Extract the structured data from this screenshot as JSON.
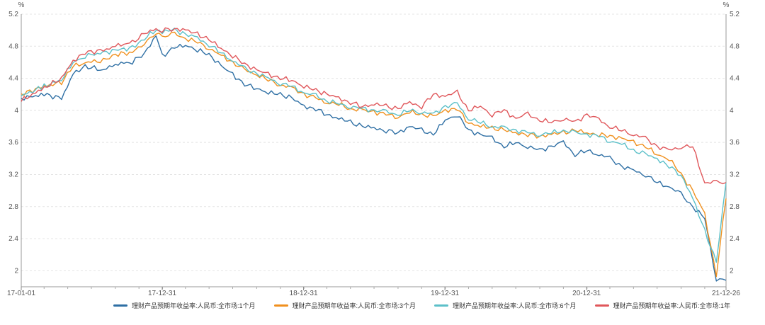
{
  "chart_data": {
    "type": "line",
    "y_unit_left": "%",
    "y_unit_right": "%",
    "ylim": [
      1.8,
      5.2
    ],
    "yticks": [
      2,
      2.4,
      2.8,
      3.2,
      3.6,
      4,
      4.4,
      4.8,
      5.2
    ],
    "xlim": [
      "2017-01-01",
      "2021-12-26"
    ],
    "xticks": [
      {
        "date": "2017-01-01",
        "label": "17-01-01"
      },
      {
        "date": "2017-12-31",
        "label": "17-12-31"
      },
      {
        "date": "2018-12-31",
        "label": "18-12-31"
      },
      {
        "date": "2019-12-31",
        "label": "19-12-31"
      },
      {
        "date": "2020-12-31",
        "label": "20-12-31"
      },
      {
        "date": "2021-12-26",
        "label": "21-12-26"
      }
    ],
    "grid": true,
    "legend_position": "bottom",
    "series": [
      {
        "name": "理财产品预期年收益率:人民币:全市场:1个月",
        "color": "#2e6fa4",
        "points": [
          [
            "2017-01-01",
            4.15
          ],
          [
            "2017-03-01",
            4.2
          ],
          [
            "2017-04-15",
            4.15
          ],
          [
            "2017-05-15",
            4.45
          ],
          [
            "2017-06-15",
            4.55
          ],
          [
            "2017-08-01",
            4.5
          ],
          [
            "2017-09-01",
            4.58
          ],
          [
            "2017-10-15",
            4.6
          ],
          [
            "2017-11-15",
            4.72
          ],
          [
            "2017-12-15",
            4.92
          ],
          [
            "2017-12-31",
            4.68
          ],
          [
            "2018-02-01",
            4.78
          ],
          [
            "2018-03-01",
            4.82
          ],
          [
            "2018-04-01",
            4.75
          ],
          [
            "2018-05-01",
            4.7
          ],
          [
            "2018-06-01",
            4.55
          ],
          [
            "2018-07-01",
            4.45
          ],
          [
            "2018-08-01",
            4.32
          ],
          [
            "2018-09-01",
            4.28
          ],
          [
            "2018-10-01",
            4.22
          ],
          [
            "2018-11-01",
            4.2
          ],
          [
            "2018-12-01",
            4.15
          ],
          [
            "2019-01-01",
            4.05
          ],
          [
            "2019-02-01",
            4.02
          ],
          [
            "2019-03-01",
            3.95
          ],
          [
            "2019-04-01",
            3.9
          ],
          [
            "2019-05-01",
            3.85
          ],
          [
            "2019-06-01",
            3.8
          ],
          [
            "2019-07-01",
            3.78
          ],
          [
            "2019-08-01",
            3.75
          ],
          [
            "2019-09-01",
            3.72
          ],
          [
            "2019-10-01",
            3.8
          ],
          [
            "2019-11-01",
            3.75
          ],
          [
            "2019-12-01",
            3.7
          ],
          [
            "2020-01-01",
            3.88
          ],
          [
            "2020-02-01",
            3.95
          ],
          [
            "2020-03-01",
            3.75
          ],
          [
            "2020-04-01",
            3.7
          ],
          [
            "2020-05-01",
            3.65
          ],
          [
            "2020-06-01",
            3.55
          ],
          [
            "2020-07-01",
            3.6
          ],
          [
            "2020-08-01",
            3.55
          ],
          [
            "2020-09-01",
            3.5
          ],
          [
            "2020-10-01",
            3.55
          ],
          [
            "2020-11-01",
            3.6
          ],
          [
            "2020-12-01",
            3.45
          ],
          [
            "2021-01-01",
            3.5
          ],
          [
            "2021-02-01",
            3.45
          ],
          [
            "2021-03-01",
            3.4
          ],
          [
            "2021-04-01",
            3.3
          ],
          [
            "2021-05-01",
            3.25
          ],
          [
            "2021-06-01",
            3.2
          ],
          [
            "2021-07-01",
            3.1
          ],
          [
            "2021-08-01",
            3.05
          ],
          [
            "2021-09-01",
            2.95
          ],
          [
            "2021-10-01",
            2.8
          ],
          [
            "2021-11-01",
            2.65
          ],
          [
            "2021-12-01",
            1.9
          ],
          [
            "2021-12-26",
            1.88
          ]
        ]
      },
      {
        "name": "理财产品预期年收益率:人民币:全市场:3个月",
        "color": "#f0901e",
        "points": [
          [
            "2017-01-01",
            4.2
          ],
          [
            "2017-03-01",
            4.3
          ],
          [
            "2017-04-15",
            4.35
          ],
          [
            "2017-05-15",
            4.55
          ],
          [
            "2017-06-15",
            4.6
          ],
          [
            "2017-08-01",
            4.62
          ],
          [
            "2017-09-01",
            4.7
          ],
          [
            "2017-10-15",
            4.72
          ],
          [
            "2017-11-15",
            4.85
          ],
          [
            "2017-12-15",
            4.95
          ],
          [
            "2017-12-31",
            4.92
          ],
          [
            "2018-02-01",
            4.95
          ],
          [
            "2018-03-01",
            4.9
          ],
          [
            "2018-04-01",
            4.85
          ],
          [
            "2018-05-01",
            4.78
          ],
          [
            "2018-06-01",
            4.68
          ],
          [
            "2018-07-01",
            4.6
          ],
          [
            "2018-08-01",
            4.5
          ],
          [
            "2018-09-01",
            4.45
          ],
          [
            "2018-10-01",
            4.38
          ],
          [
            "2018-11-01",
            4.32
          ],
          [
            "2018-12-01",
            4.28
          ],
          [
            "2019-01-01",
            4.2
          ],
          [
            "2019-02-01",
            4.15
          ],
          [
            "2019-03-01",
            4.1
          ],
          [
            "2019-04-01",
            4.08
          ],
          [
            "2019-05-01",
            4.02
          ],
          [
            "2019-06-01",
            4.0
          ],
          [
            "2019-07-01",
            3.98
          ],
          [
            "2019-08-01",
            3.95
          ],
          [
            "2019-09-01",
            3.92
          ],
          [
            "2019-10-01",
            3.98
          ],
          [
            "2019-11-01",
            3.95
          ],
          [
            "2019-12-01",
            3.92
          ],
          [
            "2020-01-01",
            4.0
          ],
          [
            "2020-02-01",
            4.02
          ],
          [
            "2020-03-01",
            3.85
          ],
          [
            "2020-04-01",
            3.8
          ],
          [
            "2020-05-01",
            3.78
          ],
          [
            "2020-06-01",
            3.75
          ],
          [
            "2020-07-01",
            3.72
          ],
          [
            "2020-08-01",
            3.7
          ],
          [
            "2020-09-01",
            3.68
          ],
          [
            "2020-10-01",
            3.7
          ],
          [
            "2020-11-01",
            3.72
          ],
          [
            "2020-12-01",
            3.75
          ],
          [
            "2021-01-01",
            3.72
          ],
          [
            "2021-02-01",
            3.7
          ],
          [
            "2021-03-01",
            3.68
          ],
          [
            "2021-04-01",
            3.65
          ],
          [
            "2021-05-01",
            3.6
          ],
          [
            "2021-06-01",
            3.55
          ],
          [
            "2021-07-01",
            3.45
          ],
          [
            "2021-08-01",
            3.4
          ],
          [
            "2021-09-01",
            3.2
          ],
          [
            "2021-10-01",
            3.0
          ],
          [
            "2021-11-01",
            2.7
          ],
          [
            "2021-12-01",
            1.95
          ],
          [
            "2021-12-26",
            2.9
          ]
        ]
      },
      {
        "name": "理财产品预期年收益率:人民币:全市场:6个月",
        "color": "#5cc0c9",
        "points": [
          [
            "2017-01-01",
            4.18
          ],
          [
            "2017-03-01",
            4.3
          ],
          [
            "2017-04-15",
            4.38
          ],
          [
            "2017-05-15",
            4.6
          ],
          [
            "2017-06-15",
            4.68
          ],
          [
            "2017-08-01",
            4.72
          ],
          [
            "2017-09-01",
            4.75
          ],
          [
            "2017-10-15",
            4.78
          ],
          [
            "2017-11-15",
            4.9
          ],
          [
            "2017-12-15",
            5.0
          ],
          [
            "2017-12-31",
            4.98
          ],
          [
            "2018-02-01",
            5.0
          ],
          [
            "2018-03-01",
            4.95
          ],
          [
            "2018-04-01",
            4.9
          ],
          [
            "2018-05-01",
            4.82
          ],
          [
            "2018-06-01",
            4.72
          ],
          [
            "2018-07-01",
            4.62
          ],
          [
            "2018-08-01",
            4.52
          ],
          [
            "2018-09-01",
            4.46
          ],
          [
            "2018-10-01",
            4.4
          ],
          [
            "2018-11-01",
            4.34
          ],
          [
            "2018-12-01",
            4.3
          ],
          [
            "2019-01-01",
            4.22
          ],
          [
            "2019-02-01",
            4.18
          ],
          [
            "2019-03-01",
            4.12
          ],
          [
            "2019-04-01",
            4.08
          ],
          [
            "2019-05-01",
            4.05
          ],
          [
            "2019-06-01",
            4.02
          ],
          [
            "2019-07-01",
            4.0
          ],
          [
            "2019-08-01",
            3.98
          ],
          [
            "2019-09-01",
            3.95
          ],
          [
            "2019-10-01",
            4.0
          ],
          [
            "2019-11-01",
            3.98
          ],
          [
            "2019-12-01",
            3.95
          ],
          [
            "2020-01-01",
            4.05
          ],
          [
            "2020-02-01",
            4.08
          ],
          [
            "2020-03-01",
            3.9
          ],
          [
            "2020-04-01",
            3.85
          ],
          [
            "2020-05-01",
            3.8
          ],
          [
            "2020-06-01",
            3.78
          ],
          [
            "2020-07-01",
            3.75
          ],
          [
            "2020-08-01",
            3.72
          ],
          [
            "2020-09-01",
            3.7
          ],
          [
            "2020-10-01",
            3.72
          ],
          [
            "2020-11-01",
            3.75
          ],
          [
            "2020-12-01",
            3.72
          ],
          [
            "2021-01-01",
            3.7
          ],
          [
            "2021-02-01",
            3.68
          ],
          [
            "2021-03-01",
            3.62
          ],
          [
            "2021-04-01",
            3.58
          ],
          [
            "2021-05-01",
            3.5
          ],
          [
            "2021-06-01",
            3.45
          ],
          [
            "2021-07-01",
            3.4
          ],
          [
            "2021-08-01",
            3.3
          ],
          [
            "2021-09-01",
            3.2
          ],
          [
            "2021-10-01",
            2.9
          ],
          [
            "2021-11-01",
            2.5
          ],
          [
            "2021-12-01",
            2.1
          ],
          [
            "2021-12-26",
            3.1
          ]
        ]
      },
      {
        "name": "理财产品预期年收益率:人民币:全市场:1年",
        "color": "#e0575b",
        "points": [
          [
            "2017-01-01",
            4.12
          ],
          [
            "2017-03-01",
            4.28
          ],
          [
            "2017-04-15",
            4.4
          ],
          [
            "2017-05-15",
            4.62
          ],
          [
            "2017-06-15",
            4.72
          ],
          [
            "2017-08-01",
            4.75
          ],
          [
            "2017-09-01",
            4.8
          ],
          [
            "2017-10-15",
            4.85
          ],
          [
            "2017-11-15",
            4.95
          ],
          [
            "2017-12-15",
            5.02
          ],
          [
            "2017-12-31",
            5.0
          ],
          [
            "2018-02-01",
            5.02
          ],
          [
            "2018-03-01",
            5.0
          ],
          [
            "2018-04-01",
            4.95
          ],
          [
            "2018-05-01",
            4.88
          ],
          [
            "2018-06-01",
            4.78
          ],
          [
            "2018-07-01",
            4.68
          ],
          [
            "2018-08-01",
            4.58
          ],
          [
            "2018-09-01",
            4.5
          ],
          [
            "2018-10-01",
            4.45
          ],
          [
            "2018-11-01",
            4.4
          ],
          [
            "2018-12-01",
            4.38
          ],
          [
            "2019-01-01",
            4.3
          ],
          [
            "2019-02-01",
            4.25
          ],
          [
            "2019-03-01",
            4.2
          ],
          [
            "2019-04-01",
            4.15
          ],
          [
            "2019-05-01",
            4.1
          ],
          [
            "2019-06-01",
            4.05
          ],
          [
            "2019-07-01",
            4.08
          ],
          [
            "2019-08-01",
            4.05
          ],
          [
            "2019-09-01",
            4.02
          ],
          [
            "2019-10-01",
            4.1
          ],
          [
            "2019-11-01",
            4.05
          ],
          [
            "2019-12-01",
            4.2
          ],
          [
            "2020-01-01",
            4.18
          ],
          [
            "2020-02-01",
            4.22
          ],
          [
            "2020-03-01",
            4.0
          ],
          [
            "2020-04-01",
            4.05
          ],
          [
            "2020-05-01",
            3.95
          ],
          [
            "2020-06-01",
            4.0
          ],
          [
            "2020-07-01",
            3.9
          ],
          [
            "2020-08-01",
            3.95
          ],
          [
            "2020-09-01",
            3.88
          ],
          [
            "2020-10-01",
            3.85
          ],
          [
            "2020-11-01",
            3.9
          ],
          [
            "2020-12-01",
            3.85
          ],
          [
            "2021-01-01",
            3.95
          ],
          [
            "2021-02-01",
            3.88
          ],
          [
            "2021-03-01",
            3.8
          ],
          [
            "2021-04-01",
            3.75
          ],
          [
            "2021-05-01",
            3.7
          ],
          [
            "2021-06-01",
            3.65
          ],
          [
            "2021-07-01",
            3.55
          ],
          [
            "2021-08-01",
            3.5
          ],
          [
            "2021-09-01",
            3.55
          ],
          [
            "2021-10-01",
            3.55
          ],
          [
            "2021-11-01",
            3.1
          ],
          [
            "2021-12-01",
            3.1
          ],
          [
            "2021-12-26",
            3.1
          ]
        ]
      }
    ]
  }
}
